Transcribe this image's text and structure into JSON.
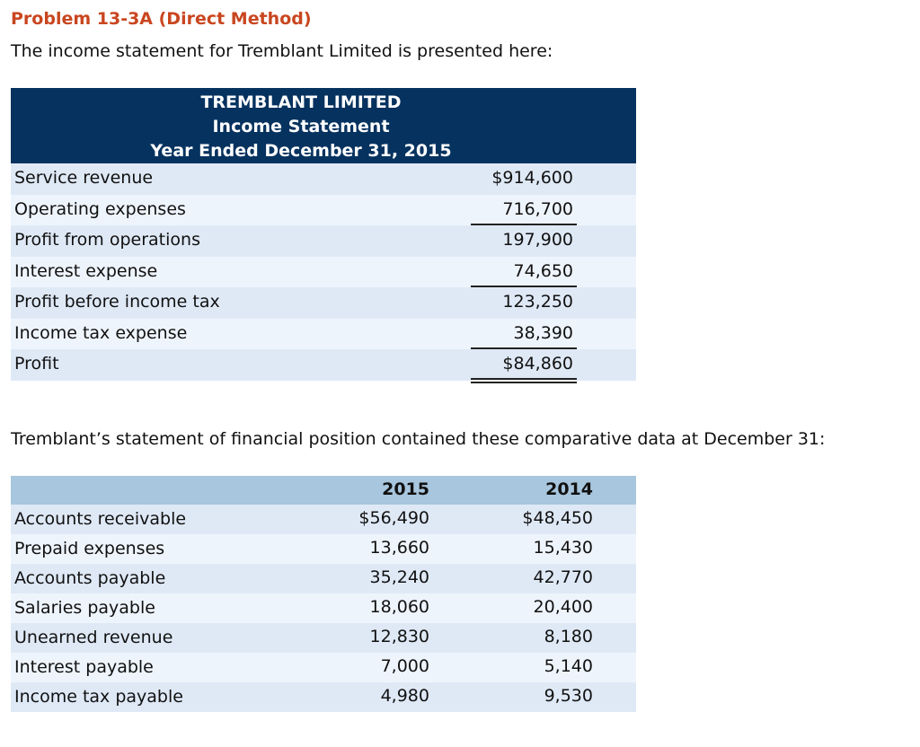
{
  "title": "Problem 13-3A (Direct Method)",
  "intro": "The income statement for Tremblant Limited is presented here:",
  "income_statement": {
    "header": [
      "TREMBLANT LIMITED",
      "Income Statement",
      "Year Ended December 31, 2015"
    ],
    "rows": [
      {
        "label": "Service revenue",
        "value": "$914,600"
      },
      {
        "label": "Operating expenses",
        "value": "716,700"
      },
      {
        "label": "Profit from operations",
        "value": "197,900"
      },
      {
        "label": "Interest expense",
        "value": "74,650"
      },
      {
        "label": "Profit before income tax",
        "value": "123,250"
      },
      {
        "label": "Income tax expense",
        "value": "38,390"
      },
      {
        "label": "Profit",
        "value": "$84,860"
      }
    ]
  },
  "intro2": "Tremblant’s statement of financial position contained these comparative data at December 31:",
  "comparative": {
    "columns": [
      "2015",
      "2014"
    ],
    "rows": [
      {
        "label": "Accounts receivable",
        "y2015": "$56,490",
        "y2014": "$48,450"
      },
      {
        "label": "Prepaid expenses",
        "y2015": "13,660",
        "y2014": "15,430"
      },
      {
        "label": "Accounts payable",
        "y2015": "35,240",
        "y2014": "42,770"
      },
      {
        "label": "Salaries payable",
        "y2015": "18,060",
        "y2014": "20,400"
      },
      {
        "label": "Unearned revenue",
        "y2015": "12,830",
        "y2014": "8,180"
      },
      {
        "label": "Interest payable",
        "y2015": "7,000",
        "y2014": "5,140"
      },
      {
        "label": "Income tax payable",
        "y2015": "4,980",
        "y2014": "9,530"
      }
    ]
  },
  "colors": {
    "title": "#c9461f",
    "header_dark": "#06325f",
    "header_light": "#a8c6dd"
  }
}
